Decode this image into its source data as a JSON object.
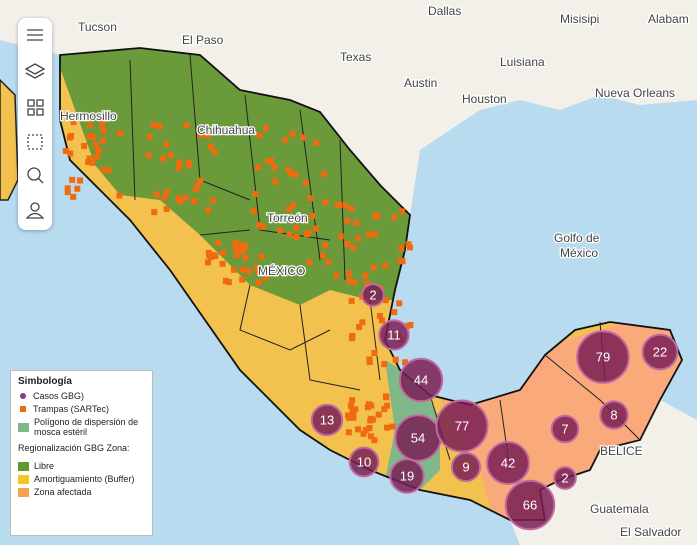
{
  "places": [
    "Dallas",
    "Tucson",
    "El Paso",
    "Texas",
    "Austin",
    "Houston",
    "Luisiana",
    "Misisipi",
    "Alabam",
    "Nueva Orleans",
    "Hermosillo",
    "Chihuahua",
    "Torreón",
    "MÉXICO",
    "Golfo de",
    "México",
    "BELICE",
    "Guatemala",
    "El Salvador"
  ],
  "clusters": [
    2,
    11,
    44,
    13,
    54,
    77,
    10,
    19,
    9,
    42,
    66,
    2,
    7,
    8,
    79,
    22
  ],
  "legend": {
    "title": "Simbología",
    "cases": "Casos GBG)",
    "traps": "Trampas (SARTec)",
    "polygon": "Polígono de dispersión de mosca estéril",
    "region": "Regionalización GBG Zona:",
    "free": "Libre",
    "buffer": "Amortiguamiento (Buffer)",
    "affected": "Zona afectada"
  }
}
